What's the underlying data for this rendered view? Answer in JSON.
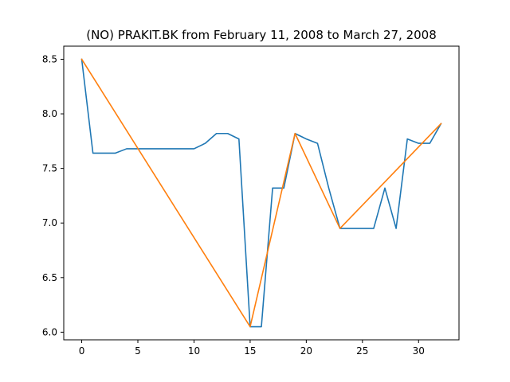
{
  "chart_data": {
    "type": "line",
    "title": "(NO) PRAKIT.BK from February 11, 2008 to March 27, 2008",
    "xlabel": "",
    "ylabel": "",
    "xlim": [
      -1.6,
      33.6
    ],
    "ylim": [
      5.93,
      8.62
    ],
    "x_ticks": [
      0,
      5,
      10,
      15,
      20,
      25,
      30
    ],
    "y_ticks": [
      6.0,
      6.5,
      7.0,
      7.5,
      8.0,
      8.5
    ],
    "y_tick_labels": [
      "6.0",
      "6.5",
      "7.0",
      "7.5",
      "8.0",
      "8.5"
    ],
    "grid": false,
    "series": [
      {
        "color": "#1f77b4",
        "x": [
          0,
          1,
          2,
          3,
          4,
          5,
          6,
          7,
          8,
          9,
          10,
          11,
          12,
          13,
          14,
          15,
          16,
          17,
          18,
          19,
          20,
          21,
          22,
          23,
          24,
          25,
          26,
          27,
          28,
          29,
          30,
          31,
          32
        ],
        "y": [
          8.5,
          7.64,
          7.64,
          7.64,
          7.68,
          7.68,
          7.68,
          7.68,
          7.68,
          7.68,
          7.68,
          7.73,
          7.82,
          7.82,
          7.77,
          6.05,
          6.05,
          7.32,
          7.32,
          7.82,
          7.77,
          7.73,
          7.32,
          6.95,
          6.95,
          6.95,
          6.95,
          7.32,
          6.95,
          7.77,
          7.73,
          7.73,
          7.91
        ]
      },
      {
        "color": "#ff7f0e",
        "x": [
          0,
          15,
          19,
          23,
          32
        ],
        "y": [
          8.5,
          6.05,
          7.82,
          6.95,
          7.91
        ]
      }
    ]
  }
}
